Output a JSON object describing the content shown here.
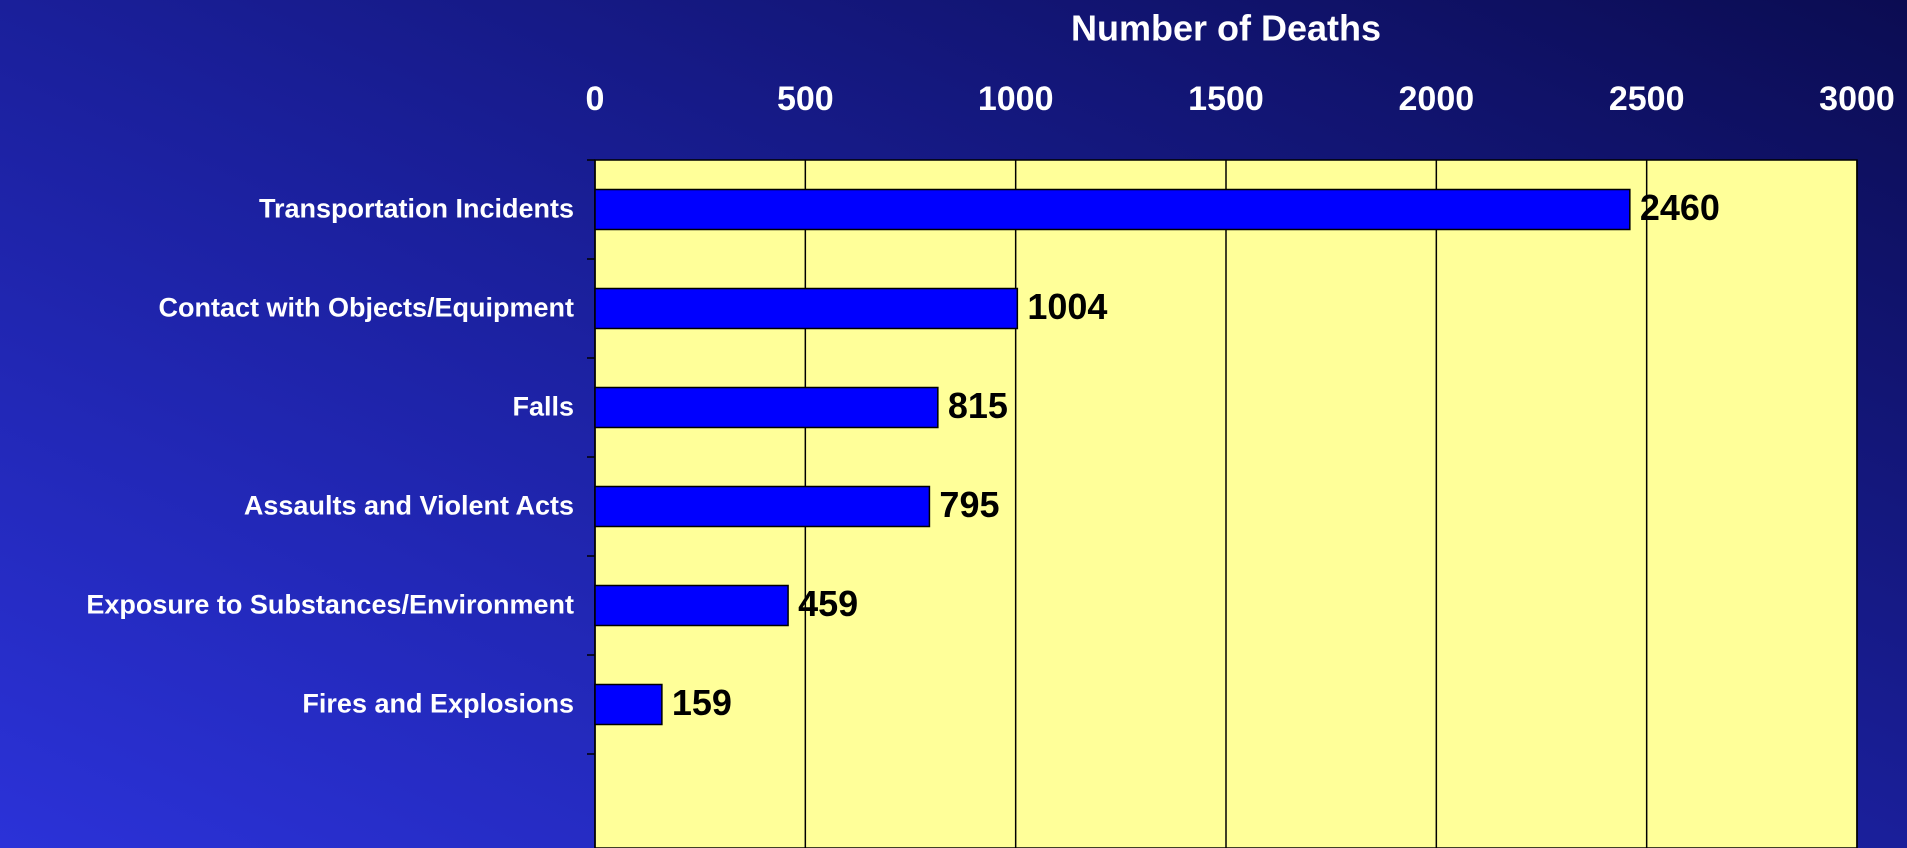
{
  "chart_data": {
    "type": "bar",
    "orientation": "horizontal",
    "x_label": "Number of Deaths",
    "categories": [
      "Transportation Incidents",
      "Contact with Objects/Equipment",
      "Falls",
      "Assaults and Violent Acts",
      "Exposure to Substances/Environment",
      "Fires and Explosions"
    ],
    "values": [
      2460,
      1004,
      815,
      795,
      459,
      159
    ],
    "color": "#0000ff",
    "xlim": [
      0,
      3000
    ],
    "xticks": [
      0,
      500,
      1000,
      1500,
      2000,
      2500,
      3000
    ],
    "grid": true,
    "plot_background": "#ffff99"
  }
}
